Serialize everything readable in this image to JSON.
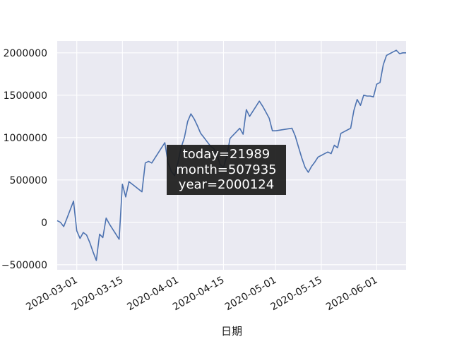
{
  "chart_data": {
    "type": "line",
    "title": "",
    "xlabel": "日期",
    "ylabel": "",
    "x_ticks": [
      "2020-03-01",
      "2020-03-15",
      "2020-04-01",
      "2020-04-15",
      "2020-05-01",
      "2020-05-15",
      "2020-06-01"
    ],
    "y_ticks": [
      "−500000",
      "0",
      "500000",
      "1000000",
      "1500000",
      "2000000"
    ],
    "ylim": [
      -560000,
      2140000
    ],
    "xlim": [
      "2020-02-24",
      "2020-06-10"
    ],
    "grid": true,
    "series": [
      {
        "color": "#4c72b0",
        "x": [
          "2020-02-24",
          "2020-02-25",
          "2020-02-26",
          "2020-02-27",
          "2020-02-28",
          "2020-02-29",
          "2020-03-01",
          "2020-03-02",
          "2020-03-03",
          "2020-03-04",
          "2020-03-05",
          "2020-03-06",
          "2020-03-07",
          "2020-03-08",
          "2020-03-09",
          "2020-03-10",
          "2020-03-11",
          "2020-03-12",
          "2020-03-13",
          "2020-03-14",
          "2020-03-15",
          "2020-03-16",
          "2020-03-17",
          "2020-03-18",
          "2020-03-19",
          "2020-03-20",
          "2020-03-21",
          "2020-03-22",
          "2020-03-23",
          "2020-03-24",
          "2020-03-25",
          "2020-03-26",
          "2020-03-27",
          "2020-03-28",
          "2020-03-29",
          "2020-03-30",
          "2020-03-31",
          "2020-04-01",
          "2020-04-02",
          "2020-04-03",
          "2020-04-04",
          "2020-04-05",
          "2020-04-06",
          "2020-04-07",
          "2020-04-08",
          "2020-04-09",
          "2020-04-10",
          "2020-04-11",
          "2020-04-12",
          "2020-04-13",
          "2020-04-14",
          "2020-04-15",
          "2020-04-16",
          "2020-04-17",
          "2020-04-18",
          "2020-04-19",
          "2020-04-20",
          "2020-04-21",
          "2020-04-22",
          "2020-04-23",
          "2020-04-24",
          "2020-04-25",
          "2020-04-26",
          "2020-04-27",
          "2020-04-28",
          "2020-04-29",
          "2020-04-30",
          "2020-05-01",
          "2020-05-06",
          "2020-05-07",
          "2020-05-08",
          "2020-05-09",
          "2020-05-10",
          "2020-05-11",
          "2020-05-12",
          "2020-05-13",
          "2020-05-14",
          "2020-05-15",
          "2020-05-16",
          "2020-05-17",
          "2020-05-18",
          "2020-05-19",
          "2020-05-20",
          "2020-05-21",
          "2020-05-22",
          "2020-05-23",
          "2020-05-24",
          "2020-05-25",
          "2020-05-26",
          "2020-05-27",
          "2020-05-28",
          "2020-05-29",
          "2020-05-30",
          "2020-05-31",
          "2020-06-01",
          "2020-06-02",
          "2020-06-03",
          "2020-06-04",
          "2020-06-05",
          "2020-06-06",
          "2020-06-07",
          "2020-06-08",
          "2020-06-09",
          "2020-06-10"
        ],
        "y": [
          20000,
          0,
          -50000,
          50000,
          150000,
          250000,
          -100000,
          -190000,
          -120000,
          -150000,
          -240000,
          -350000,
          -450000,
          -140000,
          -180000,
          50000,
          -20000,
          -80000,
          -140000,
          -200000,
          450000,
          300000,
          480000,
          450000,
          420000,
          390000,
          360000,
          700000,
          720000,
          700000,
          760000,
          820000,
          880000,
          940000,
          700000,
          600000,
          550000,
          700000,
          880000,
          1000000,
          1190000,
          1280000,
          1220000,
          1140000,
          1050000,
          1000000,
          950000,
          900000,
          870000,
          800000,
          680000,
          650000,
          780000,
          990000,
          1030000,
          1070000,
          1110000,
          1040000,
          1330000,
          1250000,
          1310000,
          1370000,
          1430000,
          1370000,
          1300000,
          1230000,
          1080000,
          1080000,
          1110000,
          1020000,
          890000,
          760000,
          650000,
          590000,
          660000,
          710000,
          770000,
          790000,
          810000,
          830000,
          810000,
          910000,
          880000,
          1050000,
          1070000,
          1090000,
          1110000,
          1320000,
          1450000,
          1380000,
          1500000,
          1490000,
          1490000,
          1480000,
          1630000,
          1650000,
          1860000,
          1970000,
          1990000,
          2010000,
          2030000,
          1990000,
          2000000,
          2000000
        ]
      }
    ]
  },
  "tooltip": {
    "line1": "today=21989",
    "line2": "month=507935",
    "line3": "year=2000124"
  }
}
